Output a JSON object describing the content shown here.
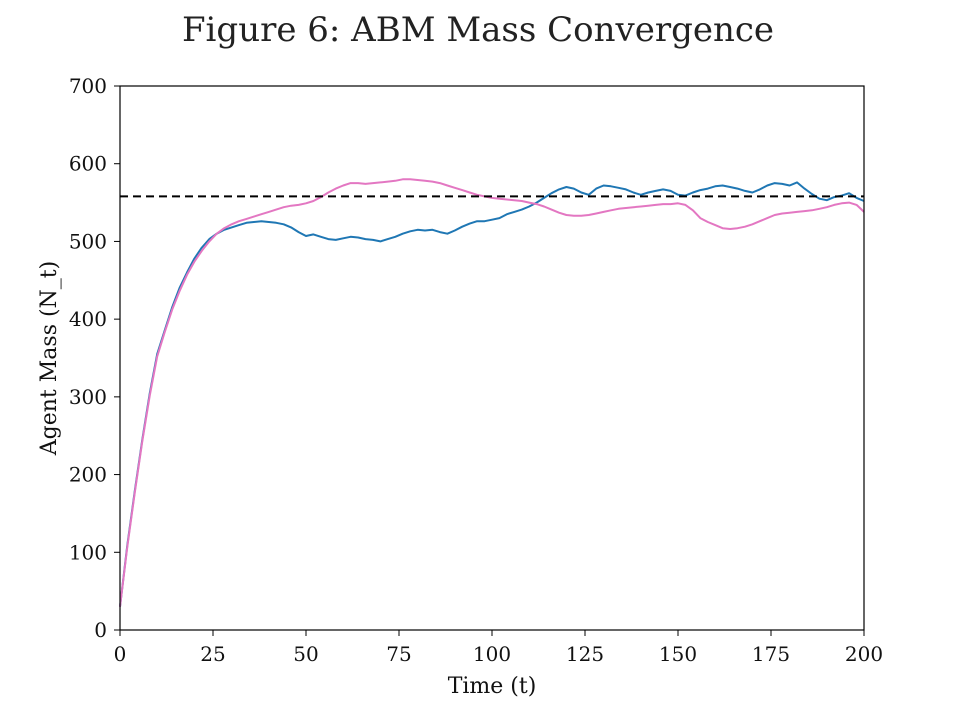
{
  "chart_data": {
    "type": "line",
    "title": "Figure 6: ABM Mass Convergence",
    "xlabel": "Time (t)",
    "ylabel": "Agent Mass (N_t)",
    "xlim": [
      0,
      200
    ],
    "ylim": [
      0,
      700
    ],
    "xticks": [
      0,
      25,
      50,
      75,
      100,
      125,
      150,
      175,
      200
    ],
    "yticks": [
      0,
      100,
      200,
      300,
      400,
      500,
      600,
      700
    ],
    "grid": false,
    "reference_line": {
      "y": 558,
      "style": "dashed",
      "color": "#000000"
    },
    "series": [
      {
        "color": "#1f77b4",
        "x": [
          0,
          2,
          4,
          6,
          8,
          10,
          12,
          14,
          16,
          18,
          20,
          22,
          24,
          26,
          28,
          30,
          32,
          34,
          36,
          38,
          40,
          42,
          44,
          46,
          48,
          50,
          52,
          54,
          56,
          58,
          60,
          62,
          64,
          66,
          68,
          70,
          72,
          74,
          76,
          78,
          80,
          82,
          84,
          86,
          88,
          90,
          92,
          94,
          96,
          98,
          100,
          102,
          104,
          106,
          108,
          110,
          112,
          114,
          116,
          118,
          120,
          122,
          124,
          126,
          128,
          130,
          132,
          134,
          136,
          138,
          140,
          142,
          144,
          146,
          148,
          150,
          152,
          154,
          156,
          158,
          160,
          162,
          164,
          166,
          168,
          170,
          172,
          174,
          176,
          178,
          180,
          182,
          184,
          186,
          188,
          190,
          192,
          194,
          196,
          198,
          200
        ],
        "y": [
          30,
          110,
          180,
          245,
          305,
          355,
          385,
          415,
          440,
          460,
          478,
          492,
          503,
          510,
          515,
          518,
          521,
          524,
          525,
          526,
          525,
          524,
          522,
          518,
          512,
          507,
          509,
          506,
          503,
          502,
          504,
          506,
          505,
          503,
          502,
          500,
          503,
          506,
          510,
          513,
          515,
          514,
          515,
          512,
          510,
          514,
          519,
          523,
          526,
          526,
          528,
          530,
          535,
          538,
          541,
          545,
          550,
          556,
          562,
          567,
          570,
          568,
          563,
          560,
          568,
          572,
          571,
          569,
          567,
          563,
          560,
          563,
          565,
          567,
          565,
          560,
          559,
          563,
          566,
          568,
          571,
          572,
          570,
          568,
          565,
          563,
          567,
          572,
          575,
          574,
          572,
          576,
          568,
          561,
          555,
          553,
          557,
          559,
          562,
          556,
          552
        ]
      },
      {
        "color": "#e377c2",
        "x": [
          0,
          2,
          4,
          6,
          8,
          10,
          12,
          14,
          16,
          18,
          20,
          22,
          24,
          26,
          28,
          30,
          32,
          34,
          36,
          38,
          40,
          42,
          44,
          46,
          48,
          50,
          52,
          54,
          56,
          58,
          60,
          62,
          64,
          66,
          68,
          70,
          72,
          74,
          76,
          78,
          80,
          82,
          84,
          86,
          88,
          90,
          92,
          94,
          96,
          98,
          100,
          102,
          104,
          106,
          108,
          110,
          112,
          114,
          116,
          118,
          120,
          122,
          124,
          126,
          128,
          130,
          132,
          134,
          136,
          138,
          140,
          142,
          144,
          146,
          148,
          150,
          152,
          154,
          156,
          158,
          160,
          162,
          164,
          166,
          168,
          170,
          172,
          174,
          176,
          178,
          180,
          182,
          184,
          186,
          188,
          190,
          192,
          194,
          196,
          198,
          200
        ],
        "y": [
          30,
          108,
          178,
          243,
          302,
          352,
          383,
          412,
          436,
          457,
          474,
          488,
          500,
          510,
          517,
          522,
          526,
          529,
          532,
          535,
          538,
          541,
          544,
          546,
          547,
          549,
          552,
          557,
          563,
          568,
          572,
          575,
          575,
          574,
          575,
          576,
          577,
          578,
          580,
          580,
          579,
          578,
          577,
          575,
          572,
          569,
          566,
          563,
          560,
          558,
          556,
          555,
          554,
          553,
          552,
          550,
          548,
          545,
          541,
          537,
          534,
          533,
          533,
          534,
          536,
          538,
          540,
          542,
          543,
          544,
          545,
          546,
          547,
          548,
          548,
          549,
          547,
          540,
          530,
          525,
          521,
          517,
          516,
          517,
          519,
          522,
          526,
          530,
          534,
          536,
          537,
          538,
          539,
          540,
          542,
          544,
          547,
          549,
          550,
          547,
          538
        ]
      }
    ]
  }
}
